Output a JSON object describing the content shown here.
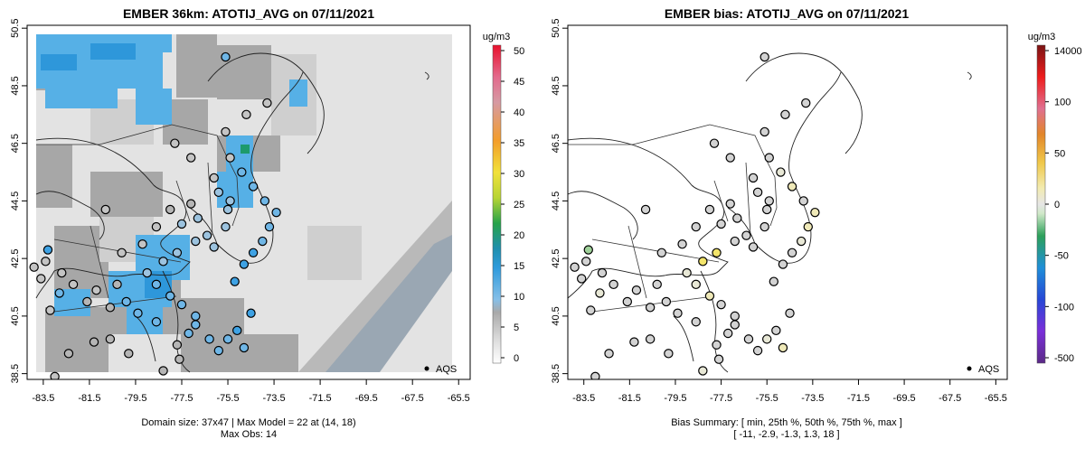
{
  "left_panel": {
    "title": "EMBER 36km: ATOTIJ_AVG on 07/11/2021",
    "colorbar_unit": "ug/m3",
    "colorbar_ticks": [
      "0",
      "5",
      "10",
      "15",
      "20",
      "25",
      "30",
      "35",
      "40",
      "45",
      "50"
    ],
    "legend_label": "AQS",
    "caption_line1": "Domain size: 37x47 | Max Model = 22 at (14, 18)",
    "caption_line2": "Max Obs: 14"
  },
  "right_panel": {
    "title": "EMBER bias: ATOTIJ_AVG on 07/11/2021",
    "colorbar_unit": "ug/m3",
    "colorbar_ticks": [
      "-500",
      "-100",
      "-50",
      "0",
      "50",
      "100",
      "14000"
    ],
    "legend_label": "AQS",
    "caption_line1": "Bias Summary: [ min, 25th %, 50th %, 75th %, max ]",
    "caption_line2": "[ -11,   -2.9,   -1.3,   1.3,   18 ]"
  },
  "x_ticks": [
    "-83.5",
    "-81.5",
    "-79.5",
    "-77.5",
    "-75.5",
    "-73.5",
    "-71.5",
    "-69.5",
    "-67.5",
    "-65.5"
  ],
  "y_ticks": [
    "38.5",
    "40.5",
    "42.5",
    "44.5",
    "46.5",
    "48.5",
    "50.5"
  ],
  "chart_data": [
    {
      "type": "heatmap",
      "title": "EMBER 36km: ATOTIJ_AVG on 07/11/2021",
      "xlabel": "",
      "ylabel": "",
      "xlim": [
        -84.2,
        -65.0
      ],
      "ylim": [
        38.3,
        50.6
      ],
      "colorbar_range": [
        0,
        50
      ],
      "units": "ug/m3",
      "model_field_regions": [
        {
          "lon": [
            -83.8,
            -78.0
          ],
          "lat": [
            48.0,
            50.5
          ],
          "value": 11
        },
        {
          "lon": [
            -79.5,
            -76.3
          ],
          "lat": [
            40.0,
            42.3
          ],
          "value": 12
        },
        {
          "lon": [
            -76.3,
            -75.0
          ],
          "lat": [
            43.5,
            47.5
          ],
          "value": 12
        },
        {
          "lon": [
            -75.6,
            -75.2
          ],
          "lat": [
            46.4,
            46.7
          ],
          "value": 22
        },
        {
          "lon": [
            -71.5,
            -67.5
          ],
          "lat": [
            38.5,
            42.0
          ],
          "value": 6
        }
      ],
      "aqs_sites": [
        {
          "lon": -77.8,
          "lat": 46.5,
          "value": 4
        },
        {
          "lon": -77.1,
          "lat": 46.0,
          "value": 4
        },
        {
          "lon": -76.1,
          "lat": 45.3,
          "value": 4
        },
        {
          "lon": -75.9,
          "lat": 44.8,
          "value": 9
        },
        {
          "lon": -75.4,
          "lat": 44.5,
          "value": 9
        },
        {
          "lon": -75.5,
          "lat": 44.2,
          "value": 9
        },
        {
          "lon": -75.6,
          "lat": 43.6,
          "value": 9
        },
        {
          "lon": -76.4,
          "lat": 43.3,
          "value": 9
        },
        {
          "lon": -76.1,
          "lat": 42.9,
          "value": 8
        },
        {
          "lon": -76.8,
          "lat": 43.9,
          "value": 9
        },
        {
          "lon": -77.5,
          "lat": 43.7,
          "value": 9
        },
        {
          "lon": -78.0,
          "lat": 44.2,
          "value": 5
        },
        {
          "lon": -77.1,
          "lat": 44.4,
          "value": 5
        },
        {
          "lon": -76.9,
          "lat": 43.1,
          "value": 8
        },
        {
          "lon": -77.7,
          "lat": 42.7,
          "value": 9
        },
        {
          "lon": -78.3,
          "lat": 42.4,
          "value": 9
        },
        {
          "lon": -79.0,
          "lat": 42.0,
          "value": 9
        },
        {
          "lon": -78.6,
          "lat": 41.6,
          "value": 10
        },
        {
          "lon": -78.0,
          "lat": 41.2,
          "value": 10
        },
        {
          "lon": -77.5,
          "lat": 40.9,
          "value": 11
        },
        {
          "lon": -76.9,
          "lat": 40.5,
          "value": 11
        },
        {
          "lon": -77.2,
          "lat": 39.9,
          "value": 11
        },
        {
          "lon": -77.7,
          "lat": 39.5,
          "value": 6
        },
        {
          "lon": -78.6,
          "lat": 40.3,
          "value": 10
        },
        {
          "lon": -79.4,
          "lat": 40.6,
          "value": 10
        },
        {
          "lon": -79.9,
          "lat": 41.0,
          "value": 10
        },
        {
          "lon": -80.3,
          "lat": 41.6,
          "value": 6
        },
        {
          "lon": -80.6,
          "lat": 40.8,
          "value": 6
        },
        {
          "lon": -81.2,
          "lat": 41.4,
          "value": 4
        },
        {
          "lon": -81.6,
          "lat": 41.0,
          "value": 6
        },
        {
          "lon": -82.2,
          "lat": 41.6,
          "value": 4
        },
        {
          "lon": -82.7,
          "lat": 42.0,
          "value": 4
        },
        {
          "lon": -83.4,
          "lat": 42.4,
          "value": 4
        },
        {
          "lon": -83.9,
          "lat": 42.2,
          "value": 4
        },
        {
          "lon": -83.6,
          "lat": 41.8,
          "value": 4
        },
        {
          "lon": -82.8,
          "lat": 41.3,
          "value": 10
        },
        {
          "lon": -83.2,
          "lat": 40.7,
          "value": 4
        },
        {
          "lon": -80.1,
          "lat": 42.7,
          "value": 4
        },
        {
          "lon": -79.2,
          "lat": 43.0,
          "value": 4
        },
        {
          "lon": -78.6,
          "lat": 43.6,
          "value": 4
        },
        {
          "lon": -80.8,
          "lat": 44.2,
          "value": 4
        },
        {
          "lon": -83.3,
          "lat": 42.8,
          "value": 14
        },
        {
          "lon": -75.2,
          "lat": 41.7,
          "value": 12
        },
        {
          "lon": -74.8,
          "lat": 42.3,
          "value": 12
        },
        {
          "lon": -74.4,
          "lat": 42.7,
          "value": 12
        },
        {
          "lon": -74.0,
          "lat": 43.1,
          "value": 10
        },
        {
          "lon": -73.7,
          "lat": 43.6,
          "value": 10
        },
        {
          "lon": -73.4,
          "lat": 44.1,
          "value": 10
        },
        {
          "lon": -73.9,
          "lat": 44.5,
          "value": 10
        },
        {
          "lon": -74.4,
          "lat": 45.0,
          "value": 10
        },
        {
          "lon": -74.9,
          "lat": 45.5,
          "value": 10
        },
        {
          "lon": -75.4,
          "lat": 46.0,
          "value": 4
        },
        {
          "lon": -75.6,
          "lat": 46.9,
          "value": 4
        },
        {
          "lon": -74.7,
          "lat": 47.5,
          "value": 4
        },
        {
          "lon": -73.8,
          "lat": 47.9,
          "value": 4
        },
        {
          "lon": -75.6,
          "lat": 49.5,
          "value": 11
        },
        {
          "lon": -76.9,
          "lat": 40.2,
          "value": 11
        },
        {
          "lon": -76.3,
          "lat": 39.7,
          "value": 10
        },
        {
          "lon": -75.9,
          "lat": 39.3,
          "value": 10
        },
        {
          "lon": -77.6,
          "lat": 39.0,
          "value": 5
        },
        {
          "lon": -78.3,
          "lat": 38.6,
          "value": 5
        },
        {
          "lon": -79.8,
          "lat": 39.2,
          "value": 5
        },
        {
          "lon": -80.6,
          "lat": 39.7,
          "value": 5
        },
        {
          "lon": -81.3,
          "lat": 39.6,
          "value": 5
        },
        {
          "lon": -82.4,
          "lat": 39.2,
          "value": 5
        },
        {
          "lon": -83.0,
          "lat": 38.4,
          "value": 4
        },
        {
          "lon": -74.5,
          "lat": 40.6,
          "value": 12
        },
        {
          "lon": -75.1,
          "lat": 40.0,
          "value": 12
        },
        {
          "lon": -75.5,
          "lat": 39.7,
          "value": 11
        },
        {
          "lon": -74.8,
          "lat": 39.4,
          "value": 11
        }
      ]
    },
    {
      "type": "scatter",
      "title": "EMBER bias: ATOTIJ_AVG on 07/11/2021",
      "xlabel": "",
      "ylabel": "",
      "xlim": [
        -84.2,
        -65.0
      ],
      "ylim": [
        38.3,
        50.6
      ],
      "colorbar_ticks": [
        -500,
        -100,
        -50,
        0,
        50,
        100,
        14000
      ],
      "units": "ug/m3",
      "bias_summary": {
        "min": -11,
        "p25": -2.9,
        "median": -1.3,
        "p75": 1.3,
        "max": 18
      },
      "aqs_sites": [
        {
          "lon": -77.8,
          "lat": 46.5,
          "value": -1
        },
        {
          "lon": -77.1,
          "lat": 46.0,
          "value": -1
        },
        {
          "lon": -76.1,
          "lat": 45.3,
          "value": -2
        },
        {
          "lon": -75.9,
          "lat": 44.8,
          "value": -3
        },
        {
          "lon": -75.4,
          "lat": 44.5,
          "value": -2
        },
        {
          "lon": -75.5,
          "lat": 44.2,
          "value": -3
        },
        {
          "lon": -75.6,
          "lat": 43.6,
          "value": -2
        },
        {
          "lon": -76.4,
          "lat": 43.3,
          "value": -3
        },
        {
          "lon": -76.1,
          "lat": 42.9,
          "value": -2
        },
        {
          "lon": -76.8,
          "lat": 43.9,
          "value": -3
        },
        {
          "lon": -77.5,
          "lat": 43.7,
          "value": -2
        },
        {
          "lon": -78.0,
          "lat": 44.2,
          "value": -1
        },
        {
          "lon": -77.1,
          "lat": 44.4,
          "value": -1
        },
        {
          "lon": -76.9,
          "lat": 43.1,
          "value": -2
        },
        {
          "lon": -77.7,
          "lat": 42.7,
          "value": 18
        },
        {
          "lon": -78.3,
          "lat": 42.4,
          "value": 14
        },
        {
          "lon": -79.0,
          "lat": 42.0,
          "value": 3
        },
        {
          "lon": -78.6,
          "lat": 41.6,
          "value": 2
        },
        {
          "lon": -78.0,
          "lat": 41.2,
          "value": 8
        },
        {
          "lon": -77.5,
          "lat": 40.9,
          "value": -3
        },
        {
          "lon": -76.9,
          "lat": 40.5,
          "value": -2
        },
        {
          "lon": -77.2,
          "lat": 39.9,
          "value": -2
        },
        {
          "lon": -77.7,
          "lat": 39.5,
          "value": -1
        },
        {
          "lon": -78.6,
          "lat": 40.3,
          "value": -3
        },
        {
          "lon": -79.4,
          "lat": 40.6,
          "value": -4
        },
        {
          "lon": -79.9,
          "lat": 41.0,
          "value": -1
        },
        {
          "lon": -80.3,
          "lat": 41.6,
          "value": -2
        },
        {
          "lon": -80.6,
          "lat": 40.8,
          "value": -3
        },
        {
          "lon": -81.2,
          "lat": 41.4,
          "value": -1
        },
        {
          "lon": -81.6,
          "lat": 41.0,
          "value": -2
        },
        {
          "lon": -82.2,
          "lat": 41.6,
          "value": -1
        },
        {
          "lon": -82.7,
          "lat": 42.0,
          "value": -3
        },
        {
          "lon": -83.4,
          "lat": 42.4,
          "value": -1
        },
        {
          "lon": -83.9,
          "lat": 42.2,
          "value": -1
        },
        {
          "lon": -83.6,
          "lat": 41.8,
          "value": -3
        },
        {
          "lon": -82.8,
          "lat": 41.3,
          "value": 1
        },
        {
          "lon": -83.2,
          "lat": 40.7,
          "value": -1
        },
        {
          "lon": -80.1,
          "lat": 42.7,
          "value": -1
        },
        {
          "lon": -79.2,
          "lat": 43.0,
          "value": -2
        },
        {
          "lon": -78.6,
          "lat": 43.6,
          "value": -1
        },
        {
          "lon": -80.8,
          "lat": 44.2,
          "value": -1
        },
        {
          "lon": -83.3,
          "lat": 42.8,
          "value": -11
        },
        {
          "lon": -75.2,
          "lat": 41.7,
          "value": -2
        },
        {
          "lon": -74.8,
          "lat": 42.3,
          "value": -2
        },
        {
          "lon": -74.4,
          "lat": 42.7,
          "value": -1
        },
        {
          "lon": -74.0,
          "lat": 43.1,
          "value": 1
        },
        {
          "lon": -73.7,
          "lat": 43.6,
          "value": 6
        },
        {
          "lon": -73.4,
          "lat": 44.1,
          "value": 7
        },
        {
          "lon": -73.9,
          "lat": 44.5,
          "value": -1
        },
        {
          "lon": -74.4,
          "lat": 45.0,
          "value": 7
        },
        {
          "lon": -74.9,
          "lat": 45.5,
          "value": 1
        },
        {
          "lon": -75.4,
          "lat": 46.0,
          "value": -1
        },
        {
          "lon": -75.6,
          "lat": 46.9,
          "value": -1
        },
        {
          "lon": -74.7,
          "lat": 47.5,
          "value": -1
        },
        {
          "lon": -73.8,
          "lat": 47.9,
          "value": -1
        },
        {
          "lon": -75.6,
          "lat": 49.5,
          "value": -1
        },
        {
          "lon": -76.9,
          "lat": 40.2,
          "value": -3
        },
        {
          "lon": -76.3,
          "lat": 39.7,
          "value": -2
        },
        {
          "lon": -75.9,
          "lat": 39.3,
          "value": -1
        },
        {
          "lon": -77.6,
          "lat": 39.0,
          "value": -2
        },
        {
          "lon": -78.3,
          "lat": 38.6,
          "value": 3
        },
        {
          "lon": -79.8,
          "lat": 39.2,
          "value": -1
        },
        {
          "lon": -80.6,
          "lat": 39.7,
          "value": -2
        },
        {
          "lon": -81.3,
          "lat": 39.6,
          "value": -1
        },
        {
          "lon": -82.4,
          "lat": 39.2,
          "value": -1
        },
        {
          "lon": -83.0,
          "lat": 38.4,
          "value": -1
        },
        {
          "lon": -74.5,
          "lat": 40.6,
          "value": -2
        },
        {
          "lon": -75.1,
          "lat": 40.0,
          "value": -2
        },
        {
          "lon": -75.5,
          "lat": 39.7,
          "value": 4
        },
        {
          "lon": -74.8,
          "lat": 39.4,
          "value": 5
        }
      ]
    }
  ]
}
